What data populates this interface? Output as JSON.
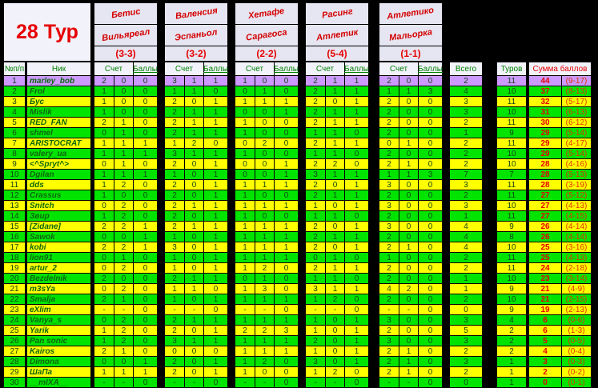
{
  "title": "28 Тур",
  "columns": {
    "num": "№п/п",
    "nick": "Ник",
    "score": "Счет",
    "points": "Баллы",
    "total": "Всего",
    "rounds": "Туров",
    "sum": "Сумма баллов"
  },
  "matches": [
    {
      "home": "Бетис",
      "away": "Вильяреал",
      "result": "(3-3)"
    },
    {
      "home": "Валенсия",
      "away": "Эспаньол",
      "result": "(3-2)"
    },
    {
      "home": "Хетафе",
      "away": "Сарагоса",
      "result": "(2-2)"
    },
    {
      "home": "Расинг",
      "away": "Атлетик",
      "result": "(5-4)"
    },
    {
      "home": "Атлетико",
      "away": "Мальорка",
      "result": "(1-1)"
    }
  ],
  "colors": {
    "sheet_bg": "#000000",
    "row_green": "#00e400",
    "row_yellow": "#ffff00",
    "row_highlight": "#cc99ff",
    "header_bg": "#f2f2fb",
    "accent_red": "#e60000",
    "text_green": "#0d660d"
  },
  "players": [
    {
      "num": 1,
      "nick": "marley_bob",
      "highlight": true,
      "predictions": [
        [
          "2",
          "0",
          0
        ],
        [
          "3",
          "1",
          1
        ],
        [
          "1",
          "0",
          0
        ],
        [
          "2",
          "1",
          1
        ],
        [
          "2",
          "0",
          0
        ]
      ],
      "total": 2,
      "rounds": 11,
      "sum": 44,
      "range": "(9-17)"
    },
    {
      "num": 2,
      "nick": "Frol",
      "highlight": false,
      "predictions": [
        [
          "1",
          "0",
          0
        ],
        [
          "1",
          "1",
          0
        ],
        [
          "0",
          "1",
          0
        ],
        [
          "2",
          "1",
          1
        ],
        [
          "1",
          "1",
          3
        ]
      ],
      "total": 4,
      "rounds": 10,
      "sum": 37,
      "range": "(8-13)"
    },
    {
      "num": 3,
      "nick": "Бус",
      "highlight": false,
      "predictions": [
        [
          "1",
          "0",
          0
        ],
        [
          "2",
          "0",
          1
        ],
        [
          "1",
          "1",
          1
        ],
        [
          "2",
          "0",
          1
        ],
        [
          "2",
          "0",
          0
        ]
      ],
      "total": 3,
      "rounds": 11,
      "sum": 32,
      "range": "(5-17)"
    },
    {
      "num": 4,
      "nick": "Mislik",
      "highlight": false,
      "predictions": [
        [
          "1",
          "0",
          0
        ],
        [
          "2",
          "1",
          1
        ],
        [
          "0",
          "0",
          1
        ],
        [
          "2",
          "1",
          1
        ],
        [
          "2",
          "0",
          0
        ]
      ],
      "total": 3,
      "rounds": 10,
      "sum": 31,
      "range": "(6-13)"
    },
    {
      "num": 5,
      "nick": "RED_FAN",
      "highlight": false,
      "predictions": [
        [
          "2",
          "1",
          0
        ],
        [
          "2",
          "1",
          1
        ],
        [
          "1",
          "0",
          0
        ],
        [
          "2",
          "1",
          1
        ],
        [
          "2",
          "0",
          0
        ]
      ],
      "total": 2,
      "rounds": 11,
      "sum": 30,
      "range": "(6-12)"
    },
    {
      "num": 6,
      "nick": "shmel",
      "highlight": false,
      "predictions": [
        [
          "0",
          "1",
          0
        ],
        [
          "2",
          "1",
          1
        ],
        [
          "1",
          "0",
          0
        ],
        [
          "1",
          "1",
          0
        ],
        [
          "2",
          "0",
          0
        ]
      ],
      "total": 1,
      "rounds": 9,
      "sum": 29,
      "range": "(5-14)"
    },
    {
      "num": 7,
      "nick": "ARISTOCRAT",
      "highlight": false,
      "predictions": [
        [
          "1",
          "1",
          1
        ],
        [
          "1",
          "2",
          0
        ],
        [
          "0",
          "2",
          0
        ],
        [
          "2",
          "1",
          1
        ],
        [
          "0",
          "1",
          0
        ]
      ],
      "total": 2,
      "rounds": 11,
      "sum": 29,
      "range": "(4-17)"
    },
    {
      "num": 8,
      "nick": "valery_ua",
      "highlight": false,
      "predictions": [
        [
          "1",
          "1",
          1
        ],
        [
          "3",
          "1",
          1
        ],
        [
          "1",
          "0",
          0
        ],
        [
          "1",
          "1",
          0
        ],
        [
          "2",
          "0",
          0
        ]
      ],
      "total": 2,
      "rounds": 10,
      "sum": 29,
      "range": "(5-14)"
    },
    {
      "num": 9,
      "nick": "<^Spryt^>",
      "highlight": false,
      "predictions": [
        [
          "0",
          "1",
          0
        ],
        [
          "2",
          "0",
          1
        ],
        [
          "0",
          "0",
          1
        ],
        [
          "2",
          "2",
          0
        ],
        [
          "2",
          "1",
          0
        ]
      ],
      "total": 2,
      "rounds": 10,
      "sum": 28,
      "range": "(4-16)"
    },
    {
      "num": 10,
      "nick": "Dgilan",
      "highlight": false,
      "predictions": [
        [
          "1",
          "1",
          1
        ],
        [
          "1",
          "0",
          1
        ],
        [
          "0",
          "0",
          1
        ],
        [
          "3",
          "1",
          1
        ],
        [
          "1",
          "1",
          3
        ]
      ],
      "total": 7,
      "rounds": 7,
      "sum": 28,
      "range": "(5-13)"
    },
    {
      "num": 11,
      "nick": "dds",
      "highlight": false,
      "predictions": [
        [
          "1",
          "2",
          0
        ],
        [
          "2",
          "0",
          1
        ],
        [
          "1",
          "1",
          1
        ],
        [
          "2",
          "0",
          1
        ],
        [
          "3",
          "0",
          0
        ]
      ],
      "total": 3,
      "rounds": 11,
      "sum": 28,
      "range": "(3-19)"
    },
    {
      "num": 12,
      "nick": "Crassus",
      "highlight": false,
      "predictions": [
        [
          "1",
          "0",
          0
        ],
        [
          "2",
          "0",
          1
        ],
        [
          "1",
          "0",
          0
        ],
        [
          "2",
          "1",
          1
        ],
        [
          "2",
          "0",
          0
        ]
      ],
      "total": 2,
      "rounds": 11,
      "sum": 27,
      "range": "(5-12)"
    },
    {
      "num": 13,
      "nick": "Snitch",
      "highlight": false,
      "predictions": [
        [
          "0",
          "2",
          0
        ],
        [
          "2",
          "1",
          1
        ],
        [
          "1",
          "1",
          1
        ],
        [
          "1",
          "0",
          1
        ],
        [
          "3",
          "0",
          0
        ]
      ],
      "total": 3,
      "rounds": 10,
      "sum": 27,
      "range": "(4-13)"
    },
    {
      "num": 14,
      "nick": "Звир",
      "highlight": false,
      "predictions": [
        [
          "1",
          "2",
          0
        ],
        [
          "2",
          "0",
          1
        ],
        [
          "1",
          "0",
          0
        ],
        [
          "1",
          "1",
          0
        ],
        [
          "2",
          "0",
          0
        ]
      ],
      "total": 1,
      "rounds": 11,
      "sum": 27,
      "range": "(4-15)"
    },
    {
      "num": 15,
      "nick": "[Zidane]",
      "highlight": false,
      "predictions": [
        [
          "2",
          "2",
          1
        ],
        [
          "2",
          "1",
          1
        ],
        [
          "1",
          "1",
          1
        ],
        [
          "2",
          "0",
          1
        ],
        [
          "3",
          "0",
          0
        ]
      ],
      "total": 4,
      "rounds": 9,
      "sum": 26,
      "range": "(4-14)"
    },
    {
      "num": 16,
      "nick": "Sawok",
      "highlight": false,
      "predictions": [
        [
          "0",
          "0",
          1
        ],
        [
          "1",
          "0",
          1
        ],
        [
          "1",
          "1",
          1
        ],
        [
          "2",
          "1",
          1
        ],
        [
          "2",
          "0",
          0
        ]
      ],
      "total": 4,
      "rounds": 8,
      "sum": 26,
      "range": "(4-14)"
    },
    {
      "num": 17,
      "nick": "kobi",
      "highlight": false,
      "predictions": [
        [
          "2",
          "2",
          1
        ],
        [
          "3",
          "0",
          1
        ],
        [
          "1",
          "1",
          1
        ],
        [
          "2",
          "0",
          1
        ],
        [
          "2",
          "1",
          0
        ]
      ],
      "total": 4,
      "rounds": 10,
      "sum": 25,
      "range": "(3-16)"
    },
    {
      "num": 18,
      "nick": "lion91",
      "highlight": false,
      "predictions": [
        [
          "0",
          "1",
          0
        ],
        [
          "1",
          "0",
          1
        ],
        [
          "1",
          "1",
          1
        ],
        [
          "0",
          "1",
          0
        ],
        [
          "1",
          "0",
          0
        ]
      ],
      "total": 2,
      "rounds": 11,
      "sum": 25,
      "range": "(4-13)"
    },
    {
      "num": 19,
      "nick": "artur_2",
      "highlight": false,
      "predictions": [
        [
          "0",
          "2",
          0
        ],
        [
          "1",
          "0",
          1
        ],
        [
          "1",
          "2",
          0
        ],
        [
          "2",
          "1",
          1
        ],
        [
          "2",
          "0",
          0
        ]
      ],
      "total": 2,
      "rounds": 11,
      "sum": 24,
      "range": "(2-18)"
    },
    {
      "num": 20,
      "nick": "Bezdelnik",
      "highlight": false,
      "predictions": [
        [
          "2",
          "0",
          0
        ],
        [
          "2",
          "1",
          1
        ],
        [
          "0",
          "1",
          0
        ],
        [
          "1",
          "1",
          0
        ],
        [
          "2",
          "0",
          0
        ]
      ],
      "total": 1,
      "rounds": 10,
      "sum": 23,
      "range": "(3-14)"
    },
    {
      "num": 21,
      "nick": "m3sYa",
      "highlight": false,
      "predictions": [
        [
          "0",
          "2",
          0
        ],
        [
          "1",
          "1",
          0
        ],
        [
          "1",
          "3",
          0
        ],
        [
          "3",
          "1",
          1
        ],
        [
          "4",
          "2",
          0
        ]
      ],
      "total": 1,
      "rounds": 9,
      "sum": 21,
      "range": "(4-9)"
    },
    {
      "num": 22,
      "nick": "Smalja",
      "highlight": false,
      "predictions": [
        [
          "2",
          "1",
          0
        ],
        [
          "1",
          "0",
          1
        ],
        [
          "1",
          "1",
          1
        ],
        [
          "1",
          "2",
          0
        ],
        [
          "2",
          "0",
          0
        ]
      ],
      "total": 2,
      "rounds": 10,
      "sum": 21,
      "range": "(2-15)"
    },
    {
      "num": 23,
      "nick": "eXlim",
      "highlight": false,
      "predictions": [
        [
          "-",
          "-",
          0
        ],
        [
          "-",
          "-",
          0
        ],
        [
          "-",
          "-",
          0
        ],
        [
          "-",
          "-",
          0
        ],
        [
          "-",
          "-",
          0
        ]
      ],
      "total": 0,
      "rounds": 9,
      "sum": 19,
      "range": "(2-13)"
    },
    {
      "num": 24,
      "nick": "Vanya_s",
      "highlight": false,
      "predictions": [
        [
          "0",
          "2",
          0
        ],
        [
          "2",
          "1",
          1
        ],
        [
          "1",
          "1",
          1
        ],
        [
          "1",
          "0",
          1
        ],
        [
          "3",
          "0",
          0
        ]
      ],
      "total": 3,
      "rounds": 4,
      "sum": 6,
      "range": "(0-6)"
    },
    {
      "num": 25,
      "nick": "Yarik",
      "highlight": false,
      "predictions": [
        [
          "1",
          "2",
          0
        ],
        [
          "2",
          "0",
          1
        ],
        [
          "2",
          "2",
          3
        ],
        [
          "1",
          "0",
          1
        ],
        [
          "2",
          "0",
          0
        ]
      ],
      "total": 5,
      "rounds": 2,
      "sum": 6,
      "range": "(1-3)"
    },
    {
      "num": 26,
      "nick": "Pan sonic",
      "highlight": false,
      "predictions": [
        [
          "1",
          "2",
          0
        ],
        [
          "3",
          "1",
          1
        ],
        [
          "1",
          "1",
          1
        ],
        [
          "2",
          "0",
          1
        ],
        [
          "3",
          "0",
          0
        ]
      ],
      "total": 3,
      "rounds": 2,
      "sum": 5,
      "range": "(0-5)"
    },
    {
      "num": 27,
      "nick": "Kairos",
      "highlight": false,
      "predictions": [
        [
          "2",
          "1",
          0
        ],
        [
          "0",
          "0",
          0
        ],
        [
          "1",
          "1",
          1
        ],
        [
          "1",
          "0",
          1
        ],
        [
          "2",
          "1",
          0
        ]
      ],
      "total": 2,
      "rounds": 2,
      "sum": 4,
      "range": "(0-4)"
    },
    {
      "num": 28,
      "nick": "Dimona",
      "highlight": false,
      "predictions": [
        [
          "0",
          "0",
          1
        ],
        [
          "2",
          "0",
          1
        ],
        [
          "1",
          "2",
          0
        ],
        [
          "3",
          "0",
          1
        ],
        [
          "2",
          "1",
          0
        ]
      ],
      "total": 3,
      "rounds": 1,
      "sum": 3,
      "range": "(0-3)"
    },
    {
      "num": 29,
      "nick": "ШаПа",
      "highlight": false,
      "predictions": [
        [
          "1",
          "1",
          1
        ],
        [
          "2",
          "0",
          1
        ],
        [
          "1",
          "0",
          0
        ],
        [
          "1",
          "2",
          0
        ],
        [
          "2",
          "1",
          0
        ]
      ],
      "total": 2,
      "rounds": 1,
      "sum": 2,
      "range": "(0-2)"
    },
    {
      "num": 30,
      "nick": "__mIXA__",
      "highlight": false,
      "predictions": [
        [
          "-",
          "-",
          0
        ],
        [
          "-",
          "-",
          0
        ],
        [
          "-",
          "-",
          0
        ],
        [
          "-",
          "-",
          0
        ],
        [
          "-",
          "-",
          0
        ]
      ],
      "total": 0,
      "rounds": 1,
      "sum": 0,
      "range": "(0-1)"
    }
  ]
}
